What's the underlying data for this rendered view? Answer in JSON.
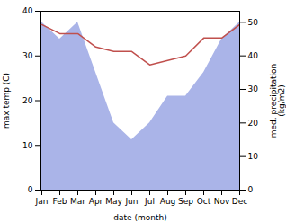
{
  "chart_data": {
    "type": "line",
    "xlabel": "date (month)",
    "ylabel": "max temp (C)",
    "y2label": "med. precipitation\n(kg/m2)",
    "categories": [
      "Jan",
      "Feb",
      "Mar",
      "Apr",
      "May",
      "Jun",
      "Jul",
      "Aug",
      "Sep",
      "Oct",
      "Nov",
      "Dec"
    ],
    "series": [
      {
        "type": "area",
        "axis": "y2",
        "color": "#aab4e8",
        "values": [
          50,
          45,
          50,
          35,
          20,
          15,
          20,
          28,
          28,
          35,
          45,
          50
        ]
      },
      {
        "type": "line",
        "color": "#c0504d",
        "values": [
          37,
          35,
          35,
          32,
          31,
          31,
          28,
          29,
          30,
          34,
          34,
          37
        ]
      }
    ],
    "ylim": [
      0,
      40
    ],
    "yticks": [
      0,
      10,
      20,
      30,
      40
    ],
    "y2lim": [
      0,
      53.3
    ],
    "y2ticks": [
      0,
      10,
      20,
      30,
      40,
      50
    ]
  }
}
